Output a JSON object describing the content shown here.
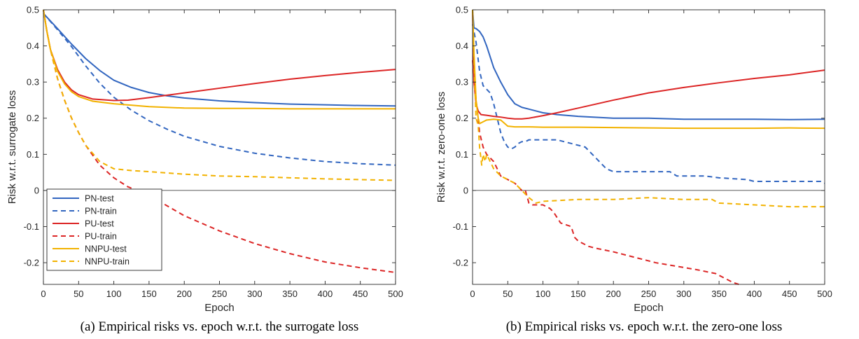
{
  "chart_data": [
    {
      "type": "line",
      "panel": "a",
      "caption": "(a) Empirical risks vs. epoch w.r.t. the surrogate loss",
      "xlabel": "Epoch",
      "ylabel": "Risk w.r.t. surrogate loss",
      "xlim": [
        0,
        500
      ],
      "ylim": [
        -0.26,
        0.5
      ],
      "xticks": [
        0,
        50,
        100,
        150,
        200,
        250,
        300,
        350,
        400,
        450,
        500
      ],
      "yticks": [
        -0.2,
        -0.1,
        0,
        0.1,
        0.2,
        0.3,
        0.4,
        0.5
      ],
      "ytick_labels": [
        "-0.2",
        "-0.1",
        "0",
        "0.1",
        "0.2",
        "0.3",
        "0.4",
        "0.5"
      ],
      "zero_line": true,
      "grid": false,
      "legend": {
        "placement": "bottom-left",
        "entries": [
          "PN-test",
          "PN-train",
          "PU-test",
          "PU-train",
          "NNPU-test",
          "NNPU-train"
        ]
      },
      "series": [
        {
          "name": "PN-test",
          "color": "#3266c0",
          "style": "solid",
          "x": [
            0,
            20,
            40,
            60,
            80,
            100,
            125,
            150,
            175,
            200,
            250,
            300,
            350,
            400,
            450,
            500
          ],
          "y": [
            0.49,
            0.448,
            0.405,
            0.365,
            0.332,
            0.305,
            0.285,
            0.271,
            0.262,
            0.256,
            0.248,
            0.243,
            0.239,
            0.237,
            0.235,
            0.234
          ]
        },
        {
          "name": "PN-train",
          "color": "#3266c0",
          "style": "dashed",
          "x": [
            0,
            20,
            40,
            60,
            80,
            100,
            125,
            150,
            175,
            200,
            250,
            300,
            350,
            400,
            450,
            500
          ],
          "y": [
            0.49,
            0.445,
            0.398,
            0.345,
            0.297,
            0.258,
            0.222,
            0.193,
            0.17,
            0.15,
            0.122,
            0.103,
            0.09,
            0.08,
            0.074,
            0.07
          ]
        },
        {
          "name": "PU-test",
          "color": "#dc2626",
          "style": "solid",
          "x": [
            0,
            5,
            10,
            20,
            30,
            40,
            50,
            70,
            100,
            120,
            150,
            200,
            250,
            300,
            350,
            400,
            450,
            500
          ],
          "y": [
            0.5,
            0.44,
            0.39,
            0.335,
            0.3,
            0.278,
            0.265,
            0.253,
            0.249,
            0.25,
            0.257,
            0.27,
            0.283,
            0.296,
            0.308,
            0.318,
            0.327,
            0.335
          ]
        },
        {
          "name": "PU-train",
          "color": "#dc2626",
          "style": "dashed",
          "x": [
            0,
            5,
            10,
            20,
            30,
            40,
            50,
            60,
            80,
            100,
            120,
            140,
            160,
            200,
            250,
            300,
            350,
            400,
            450,
            500
          ],
          "y": [
            0.5,
            0.44,
            0.39,
            0.31,
            0.25,
            0.2,
            0.16,
            0.125,
            0.07,
            0.035,
            0.01,
            -0.005,
            -0.025,
            -0.07,
            -0.112,
            -0.147,
            -0.175,
            -0.198,
            -0.214,
            -0.227
          ]
        },
        {
          "name": "NNPU-test",
          "color": "#f2b200",
          "style": "solid",
          "x": [
            0,
            5,
            10,
            20,
            30,
            40,
            50,
            70,
            100,
            150,
            200,
            250,
            300,
            350,
            400,
            450,
            500
          ],
          "y": [
            0.5,
            0.44,
            0.39,
            0.33,
            0.295,
            0.273,
            0.26,
            0.247,
            0.24,
            0.232,
            0.228,
            0.227,
            0.227,
            0.226,
            0.226,
            0.226,
            0.226
          ]
        },
        {
          "name": "NNPU-train",
          "color": "#f2b200",
          "style": "dashed",
          "x": [
            0,
            5,
            10,
            20,
            30,
            40,
            50,
            60,
            80,
            100,
            125,
            150,
            200,
            250,
            300,
            350,
            400,
            450,
            500
          ],
          "y": [
            0.5,
            0.44,
            0.39,
            0.31,
            0.25,
            0.2,
            0.16,
            0.125,
            0.08,
            0.06,
            0.055,
            0.052,
            0.045,
            0.04,
            0.038,
            0.035,
            0.032,
            0.03,
            0.028
          ]
        }
      ]
    },
    {
      "type": "line",
      "panel": "b",
      "caption": "(b) Empirical risks vs. epoch w.r.t. the zero-one loss",
      "xlabel": "Epoch",
      "ylabel": "Risk w.r.t. zero-one loss",
      "xlim": [
        0,
        500
      ],
      "ylim": [
        -0.26,
        0.5
      ],
      "xticks": [
        0,
        50,
        100,
        150,
        200,
        250,
        300,
        350,
        400,
        450,
        500
      ],
      "yticks": [
        -0.2,
        -0.1,
        0,
        0.1,
        0.2,
        0.3,
        0.4,
        0.5
      ],
      "ytick_labels": [
        "-0.2",
        "-0.1",
        "0",
        "0.1",
        "0.2",
        "0.3",
        "0.4",
        "0.5"
      ],
      "zero_line": true,
      "grid": false,
      "series": [
        {
          "name": "PN-test",
          "color": "#3266c0",
          "style": "solid",
          "x": [
            0,
            2,
            5,
            10,
            15,
            20,
            30,
            40,
            50,
            60,
            70,
            80,
            100,
            120,
            150,
            200,
            250,
            300,
            350,
            400,
            450,
            500
          ],
          "y": [
            0.5,
            0.45,
            0.448,
            0.44,
            0.425,
            0.4,
            0.34,
            0.3,
            0.265,
            0.24,
            0.23,
            0.225,
            0.215,
            0.21,
            0.205,
            0.2,
            0.2,
            0.197,
            0.197,
            0.197,
            0.196,
            0.197
          ]
        },
        {
          "name": "PN-train",
          "color": "#3266c0",
          "style": "dashed",
          "x": [
            0,
            5,
            10,
            15,
            20,
            25,
            30,
            35,
            40,
            45,
            50,
            55,
            60,
            65,
            70,
            75,
            80,
            90,
            100,
            120,
            140,
            160,
            170,
            180,
            190,
            200,
            240,
            280,
            290,
            330,
            350,
            390,
            400,
            495,
            500
          ],
          "y": [
            0.46,
            0.41,
            0.33,
            0.29,
            0.28,
            0.27,
            0.24,
            0.2,
            0.16,
            0.135,
            0.12,
            0.115,
            0.12,
            0.13,
            0.135,
            0.135,
            0.14,
            0.14,
            0.14,
            0.14,
            0.13,
            0.12,
            0.1,
            0.08,
            0.06,
            0.052,
            0.052,
            0.052,
            0.04,
            0.04,
            0.035,
            0.03,
            0.025,
            0.025,
            0.02
          ]
        },
        {
          "name": "PU-test",
          "color": "#dc2626",
          "style": "solid",
          "x": [
            0,
            2,
            5,
            8,
            12,
            20,
            30,
            40,
            50,
            60,
            70,
            80,
            100,
            120,
            150,
            200,
            250,
            300,
            350,
            400,
            450,
            500
          ],
          "y": [
            0.5,
            0.3,
            0.24,
            0.22,
            0.21,
            0.208,
            0.205,
            0.203,
            0.2,
            0.198,
            0.198,
            0.2,
            0.207,
            0.215,
            0.228,
            0.25,
            0.27,
            0.285,
            0.298,
            0.31,
            0.32,
            0.333
          ]
        },
        {
          "name": "PU-train",
          "color": "#dc2626",
          "style": "dashed",
          "x": [
            0,
            3,
            5,
            8,
            10,
            15,
            20,
            25,
            30,
            35,
            40,
            45,
            50,
            55,
            60,
            65,
            70,
            75,
            80,
            85,
            100,
            110,
            115,
            125,
            140,
            145,
            150,
            165,
            175,
            200,
            230,
            260,
            290,
            320,
            345,
            360,
            370,
            378
          ],
          "y": [
            0.36,
            0.3,
            0.25,
            0.2,
            0.16,
            0.12,
            0.1,
            0.09,
            0.08,
            0.06,
            0.04,
            0.035,
            0.03,
            0.025,
            0.02,
            0.01,
            0.0,
            0.0,
            -0.035,
            -0.04,
            -0.04,
            -0.05,
            -0.06,
            -0.09,
            -0.1,
            -0.13,
            -0.14,
            -0.155,
            -0.16,
            -0.17,
            -0.185,
            -0.2,
            -0.21,
            -0.22,
            -0.23,
            -0.245,
            -0.255,
            -0.26
          ]
        },
        {
          "name": "NNPU-test",
          "color": "#f2b200",
          "style": "solid",
          "x": [
            0,
            2,
            5,
            8,
            10,
            15,
            20,
            30,
            40,
            50,
            60,
            80,
            100,
            150,
            200,
            250,
            300,
            350,
            400,
            450,
            500
          ],
          "y": [
            0.5,
            0.38,
            0.25,
            0.2,
            0.185,
            0.19,
            0.195,
            0.197,
            0.195,
            0.178,
            0.176,
            0.176,
            0.175,
            0.175,
            0.174,
            0.173,
            0.172,
            0.172,
            0.172,
            0.173,
            0.172
          ]
        },
        {
          "name": "NNPU-train",
          "color": "#f2b200",
          "style": "dashed",
          "x": [
            0,
            3,
            5,
            8,
            10,
            13,
            15,
            18,
            20,
            25,
            30,
            40,
            50,
            60,
            70,
            80,
            90,
            100,
            150,
            200,
            250,
            300,
            340,
            350,
            400,
            450,
            500
          ],
          "y": [
            0.5,
            0.3,
            0.2,
            0.18,
            0.12,
            0.07,
            0.1,
            0.08,
            0.1,
            0.08,
            0.06,
            0.04,
            0.03,
            0.02,
            0.0,
            -0.02,
            -0.035,
            -0.03,
            -0.025,
            -0.025,
            -0.02,
            -0.025,
            -0.025,
            -0.035,
            -0.04,
            -0.045,
            -0.045
          ]
        }
      ]
    }
  ]
}
